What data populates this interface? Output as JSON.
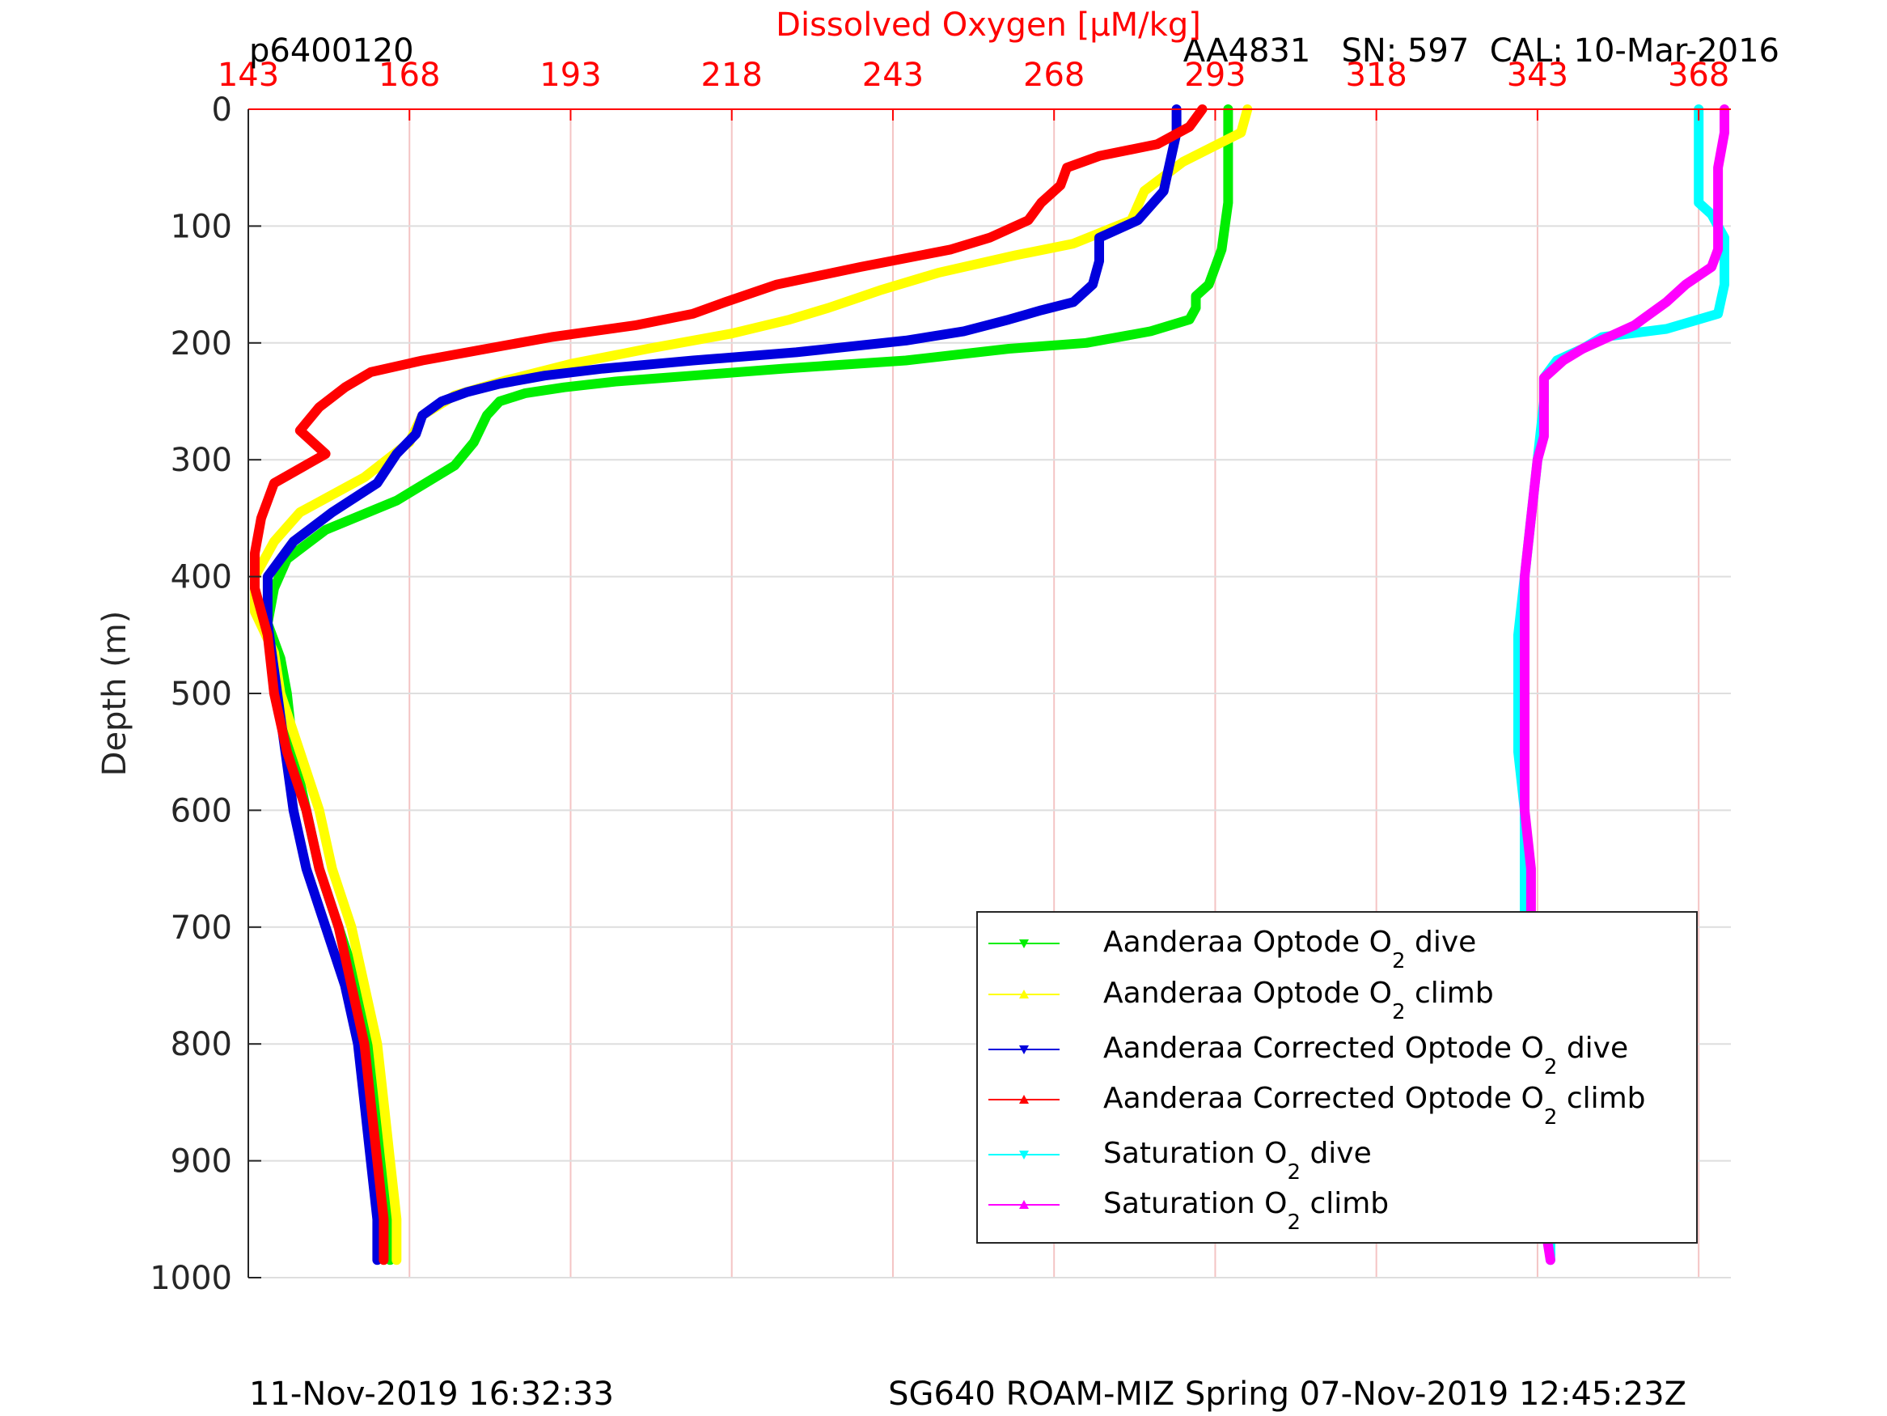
{
  "chart_data": {
    "type": "line",
    "title": "Dissolved Oxygen [μM/kg]",
    "xlabel": "Dissolved Oxygen [μM/kg]",
    "ylabel": "Depth (m)",
    "xlim": [
      143,
      373
    ],
    "ylim": [
      0,
      1000
    ],
    "y_reversed": true,
    "x_axis_location": "top",
    "xticks": [
      "143",
      "168",
      "193",
      "218",
      "243",
      "268",
      "293",
      "318",
      "343",
      "368"
    ],
    "yticks": [
      "0",
      "100",
      "200",
      "300",
      "400",
      "500",
      "600",
      "700",
      "800",
      "900",
      "1000"
    ],
    "grid": true,
    "legend_position": "bottom-right",
    "series": [
      {
        "name": "Aanderaa Optode O_2 dive",
        "color": "#00ee00",
        "marker": "triangle-down",
        "points": [
          [
            295,
            0
          ],
          [
            295,
            30
          ],
          [
            295,
            80
          ],
          [
            294,
            120
          ],
          [
            292,
            150
          ],
          [
            290,
            160
          ],
          [
            290,
            170
          ],
          [
            289,
            180
          ],
          [
            283,
            190
          ],
          [
            273,
            200
          ],
          [
            261,
            205
          ],
          [
            245,
            215
          ],
          [
            226,
            222
          ],
          [
            212,
            228
          ],
          [
            200,
            233
          ],
          [
            192,
            238
          ],
          [
            186,
            243
          ],
          [
            182,
            250
          ],
          [
            180,
            262
          ],
          [
            178,
            285
          ],
          [
            175,
            305
          ],
          [
            166,
            335
          ],
          [
            155,
            360
          ],
          [
            149,
            385
          ],
          [
            147,
            410
          ],
          [
            146,
            440
          ],
          [
            148,
            470
          ],
          [
            149,
            500
          ],
          [
            150,
            550
          ],
          [
            152,
            600
          ],
          [
            154,
            650
          ],
          [
            157,
            700
          ],
          [
            160,
            750
          ],
          [
            162,
            800
          ],
          [
            163,
            850
          ],
          [
            164,
            900
          ],
          [
            165,
            950
          ],
          [
            165,
            985
          ]
        ]
      },
      {
        "name": "Aanderaa Optode O_2 climb",
        "color": "#ffff00",
        "marker": "triangle-up",
        "points": [
          [
            298,
            0
          ],
          [
            297,
            20
          ],
          [
            288,
            45
          ],
          [
            282,
            70
          ],
          [
            280,
            95
          ],
          [
            271,
            115
          ],
          [
            262,
            125
          ],
          [
            250,
            140
          ],
          [
            241,
            155
          ],
          [
            233,
            170
          ],
          [
            227,
            180
          ],
          [
            218,
            192
          ],
          [
            205,
            205
          ],
          [
            193,
            218
          ],
          [
            183,
            232
          ],
          [
            175,
            245
          ],
          [
            170,
            262
          ],
          [
            168,
            285
          ],
          [
            161,
            315
          ],
          [
            151,
            345
          ],
          [
            147,
            370
          ],
          [
            144,
            400
          ],
          [
            144,
            430
          ],
          [
            147,
            465
          ],
          [
            148,
            500
          ],
          [
            151,
            550
          ],
          [
            154,
            600
          ],
          [
            156,
            650
          ],
          [
            159,
            700
          ],
          [
            161,
            750
          ],
          [
            163,
            800
          ],
          [
            164,
            850
          ],
          [
            165,
            900
          ],
          [
            166,
            950
          ],
          [
            166,
            985
          ]
        ]
      },
      {
        "name": "Aanderaa Corrected Optode O_2 dive",
        "color": "#0000dd",
        "marker": "triangle-down",
        "points": [
          [
            287,
            0
          ],
          [
            287,
            20
          ],
          [
            286,
            45
          ],
          [
            285,
            70
          ],
          [
            281,
            95
          ],
          [
            275,
            110
          ],
          [
            275,
            130
          ],
          [
            274,
            150
          ],
          [
            271,
            165
          ],
          [
            266,
            172
          ],
          [
            261,
            180
          ],
          [
            254,
            190
          ],
          [
            245,
            198
          ],
          [
            228,
            208
          ],
          [
            212,
            215
          ],
          [
            198,
            222
          ],
          [
            189,
            228
          ],
          [
            182,
            235
          ],
          [
            177,
            242
          ],
          [
            173,
            250
          ],
          [
            170,
            262
          ],
          [
            169,
            278
          ],
          [
            166,
            295
          ],
          [
            163,
            320
          ],
          [
            156,
            345
          ],
          [
            150,
            370
          ],
          [
            146,
            400
          ],
          [
            146,
            440
          ],
          [
            147,
            480
          ],
          [
            148,
            520
          ],
          [
            149,
            560
          ],
          [
            150,
            600
          ],
          [
            152,
            650
          ],
          [
            155,
            700
          ],
          [
            158,
            750
          ],
          [
            160,
            800
          ],
          [
            161,
            850
          ],
          [
            162,
            900
          ],
          [
            163,
            950
          ],
          [
            163,
            985
          ]
        ]
      },
      {
        "name": "Aanderaa Corrected Optode O_2 climb",
        "color": "#ff0000",
        "marker": "triangle-up",
        "points": [
          [
            291,
            0
          ],
          [
            289,
            15
          ],
          [
            284,
            30
          ],
          [
            275,
            40
          ],
          [
            270,
            50
          ],
          [
            269,
            65
          ],
          [
            266,
            80
          ],
          [
            264,
            95
          ],
          [
            258,
            110
          ],
          [
            252,
            120
          ],
          [
            238,
            135
          ],
          [
            225,
            150
          ],
          [
            217,
            165
          ],
          [
            212,
            175
          ],
          [
            203,
            185
          ],
          [
            190,
            195
          ],
          [
            180,
            205
          ],
          [
            170,
            215
          ],
          [
            162,
            225
          ],
          [
            158,
            238
          ],
          [
            154,
            255
          ],
          [
            151,
            275
          ],
          [
            155,
            295
          ],
          [
            147,
            320
          ],
          [
            145,
            350
          ],
          [
            144,
            380
          ],
          [
            144,
            410
          ],
          [
            146,
            450
          ],
          [
            147,
            500
          ],
          [
            149,
            550
          ],
          [
            152,
            600
          ],
          [
            154,
            650
          ],
          [
            157,
            700
          ],
          [
            159,
            750
          ],
          [
            161,
            800
          ],
          [
            162,
            850
          ],
          [
            163,
            900
          ],
          [
            164,
            950
          ],
          [
            164,
            985
          ]
        ]
      },
      {
        "name": "Saturation O_2 dive",
        "color": "#00ffff",
        "marker": "triangle-down",
        "points": [
          [
            368,
            0
          ],
          [
            368,
            40
          ],
          [
            368,
            80
          ],
          [
            370,
            90
          ],
          [
            372,
            110
          ],
          [
            372,
            150
          ],
          [
            371,
            175
          ],
          [
            363,
            188
          ],
          [
            353,
            195
          ],
          [
            350,
            205
          ],
          [
            346,
            215
          ],
          [
            344,
            230
          ],
          [
            344,
            250
          ],
          [
            343,
            300
          ],
          [
            342,
            350
          ],
          [
            341,
            400
          ],
          [
            340,
            450
          ],
          [
            340,
            500
          ],
          [
            340,
            550
          ],
          [
            341,
            600
          ],
          [
            341,
            650
          ],
          [
            341,
            700
          ],
          [
            342,
            750
          ],
          [
            343,
            800
          ],
          [
            344,
            850
          ],
          [
            344,
            900
          ],
          [
            345,
            950
          ],
          [
            345,
            985
          ]
        ]
      },
      {
        "name": "Saturation O_2 climb",
        "color": "#ff00ff",
        "marker": "triangle-up",
        "points": [
          [
            372,
            0
          ],
          [
            372,
            20
          ],
          [
            371,
            50
          ],
          [
            371,
            80
          ],
          [
            371,
            100
          ],
          [
            371,
            120
          ],
          [
            370,
            135
          ],
          [
            366,
            150
          ],
          [
            363,
            165
          ],
          [
            358,
            185
          ],
          [
            354,
            195
          ],
          [
            350,
            205
          ],
          [
            347,
            215
          ],
          [
            344,
            230
          ],
          [
            344,
            250
          ],
          [
            344,
            280
          ],
          [
            343,
            300
          ],
          [
            342,
            350
          ],
          [
            341,
            400
          ],
          [
            341,
            450
          ],
          [
            341,
            500
          ],
          [
            341,
            550
          ],
          [
            341,
            600
          ],
          [
            342,
            650
          ],
          [
            342,
            700
          ],
          [
            343,
            750
          ],
          [
            343,
            800
          ],
          [
            343,
            850
          ],
          [
            344,
            900
          ],
          [
            344,
            950
          ],
          [
            345,
            985
          ]
        ]
      }
    ]
  },
  "header": {
    "profile_id": "p6400120",
    "sensor_info": "AA4831   SN: 597  CAL: 10-Mar-2016"
  },
  "footer": {
    "left": "11-Nov-2019 16:32:33",
    "right": "SG640 ROAM-MIZ Spring 07-Nov-2019 12:45:23Z"
  },
  "legend": [
    {
      "prefix": "Aanderaa Optode O",
      "sub": "2",
      "suffix": " dive"
    },
    {
      "prefix": "Aanderaa Optode O",
      "sub": "2",
      "suffix": " climb"
    },
    {
      "prefix": "Aanderaa Corrected Optode O",
      "sub": "2",
      "suffix": " dive"
    },
    {
      "prefix": "Aanderaa Corrected Optode O",
      "sub": "2",
      "suffix": " climb"
    },
    {
      "prefix": "Saturation O",
      "sub": "2",
      "suffix": " dive"
    },
    {
      "prefix": "Saturation O",
      "sub": "2",
      "suffix": " climb"
    }
  ],
  "colors": {
    "top_axis": "#ff0000",
    "top_grid": "#f4c4c4",
    "depth_grid": "#dedede"
  }
}
